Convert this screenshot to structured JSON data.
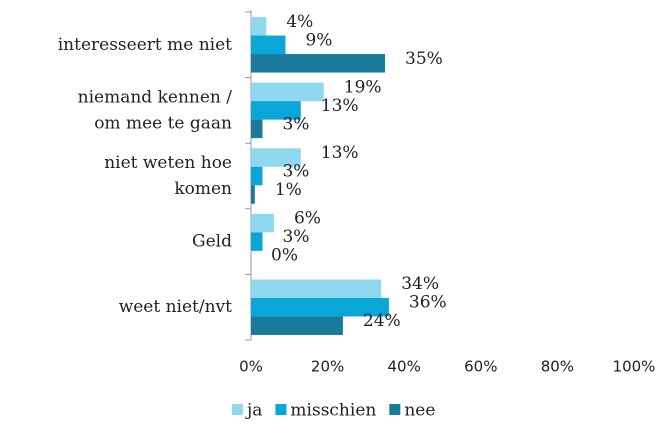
{
  "chart_data": {
    "type": "hbar",
    "categories": [
      [
        "interesseert me niet"
      ],
      [
        "niemand kennen /",
        "om mee te gaan"
      ],
      [
        "niet weten hoe",
        "komen"
      ],
      [
        "Geld"
      ],
      [
        "weet niet/nvt"
      ]
    ],
    "series": [
      {
        "name": "ja",
        "color": "#8fd8ee",
        "values": [
          4,
          19,
          13,
          6,
          34
        ],
        "value_labels": [
          "4%",
          "19%",
          "13%",
          "6%",
          "34%"
        ]
      },
      {
        "name": "misschien",
        "color": "#0aa6d8",
        "values": [
          9,
          13,
          3,
          3,
          36
        ],
        "value_labels": [
          "9%",
          "13%",
          "3%",
          "3%",
          "36%"
        ]
      },
      {
        "name": "nee",
        "color": "#1a7a9a",
        "values": [
          35,
          3,
          1,
          0,
          24
        ],
        "value_labels": [
          "35%",
          "3%",
          "1%",
          "0%",
          "24%"
        ]
      }
    ],
    "xlim": [
      0,
      100
    ],
    "xticks": [
      {
        "value": 0,
        "label": "0%"
      },
      {
        "value": 20,
        "label": "20%"
      },
      {
        "value": 40,
        "label": "40%"
      },
      {
        "value": 60,
        "label": "60%"
      },
      {
        "value": 80,
        "label": "80%"
      },
      {
        "value": 100,
        "label": "100%"
      }
    ],
    "legend": "bottom"
  }
}
